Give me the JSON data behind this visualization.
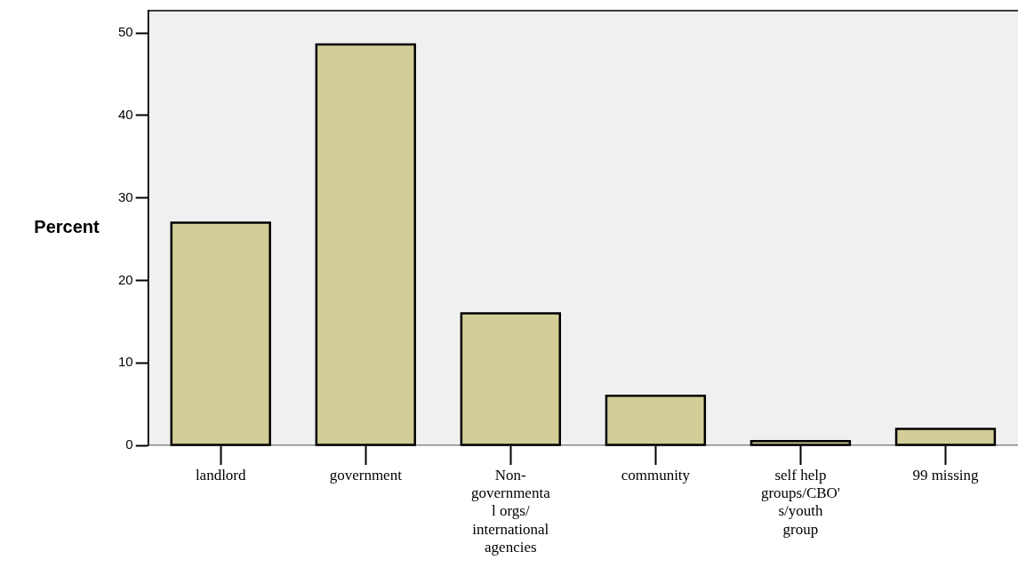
{
  "chart_data": {
    "type": "bar",
    "ylabel": "Percent",
    "categories": [
      "landlord",
      "government",
      "Non-governmental orgs/ international agencies",
      "community",
      "self help groups/CBO's/youth group",
      "99 missing"
    ],
    "values": [
      27.0,
      48.6,
      16.0,
      6.0,
      0.5,
      2.0
    ],
    "color": "#d3ce98",
    "ylim": [
      0,
      52.7
    ],
    "yticks": [
      0,
      10,
      20,
      30,
      40,
      50
    ],
    "grid": false,
    "legend": false
  }
}
